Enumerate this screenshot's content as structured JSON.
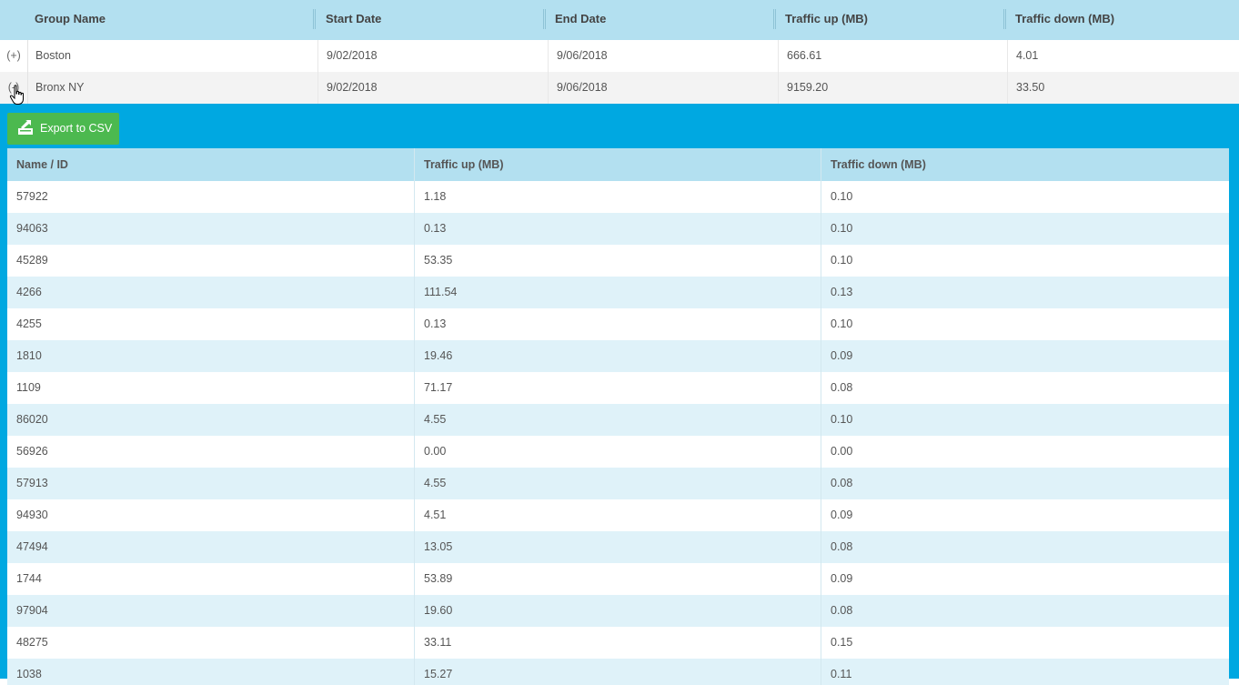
{
  "group_grid": {
    "columns": [
      "Group Name",
      "Start Date",
      "End Date",
      "Traffic up (MB)",
      "Traffic down (MB)"
    ],
    "rows": [
      {
        "expander": "(+)",
        "group_name": "Boston",
        "start_date": "9/02/2018",
        "end_date": "9/06/2018",
        "traffic_up": "666.61",
        "traffic_down": "4.01"
      },
      {
        "expander": "(-)",
        "group_name": "Bronx NY",
        "start_date": "9/02/2018",
        "end_date": "9/06/2018",
        "traffic_up": "9159.20",
        "traffic_down": "33.50"
      }
    ]
  },
  "detail": {
    "export_label": "Export to CSV",
    "export_icon": "export-icon",
    "columns": [
      "Name / ID",
      "Traffic up (MB)",
      "Traffic down (MB)"
    ],
    "rows": [
      {
        "id": "57922",
        "up": "1.18",
        "down": "0.10"
      },
      {
        "id": "94063",
        "up": "0.13",
        "down": "0.10"
      },
      {
        "id": "45289",
        "up": "53.35",
        "down": "0.10"
      },
      {
        "id": "4266",
        "up": "111.54",
        "down": "0.13"
      },
      {
        "id": "4255",
        "up": "0.13",
        "down": "0.10"
      },
      {
        "id": "1810",
        "up": "19.46",
        "down": "0.09"
      },
      {
        "id": "1109",
        "up": "71.17",
        "down": "0.08"
      },
      {
        "id": "86020",
        "up": "4.55",
        "down": "0.10"
      },
      {
        "id": "56926",
        "up": "0.00",
        "down": "0.00"
      },
      {
        "id": "57913",
        "up": "4.55",
        "down": "0.08"
      },
      {
        "id": "94930",
        "up": "4.51",
        "down": "0.09"
      },
      {
        "id": "47494",
        "up": "13.05",
        "down": "0.08"
      },
      {
        "id": "1744",
        "up": "53.89",
        "down": "0.09"
      },
      {
        "id": "97904",
        "up": "19.60",
        "down": "0.08"
      },
      {
        "id": "48275",
        "up": "33.11",
        "down": "0.15"
      },
      {
        "id": "1038",
        "up": "15.27",
        "down": "0.11"
      }
    ]
  },
  "colors": {
    "header_bg": "#b3e0f0",
    "panel_bg": "#00a8e1",
    "button_bg": "#4cb94f",
    "alt_row_bg": "#dff2f9"
  }
}
